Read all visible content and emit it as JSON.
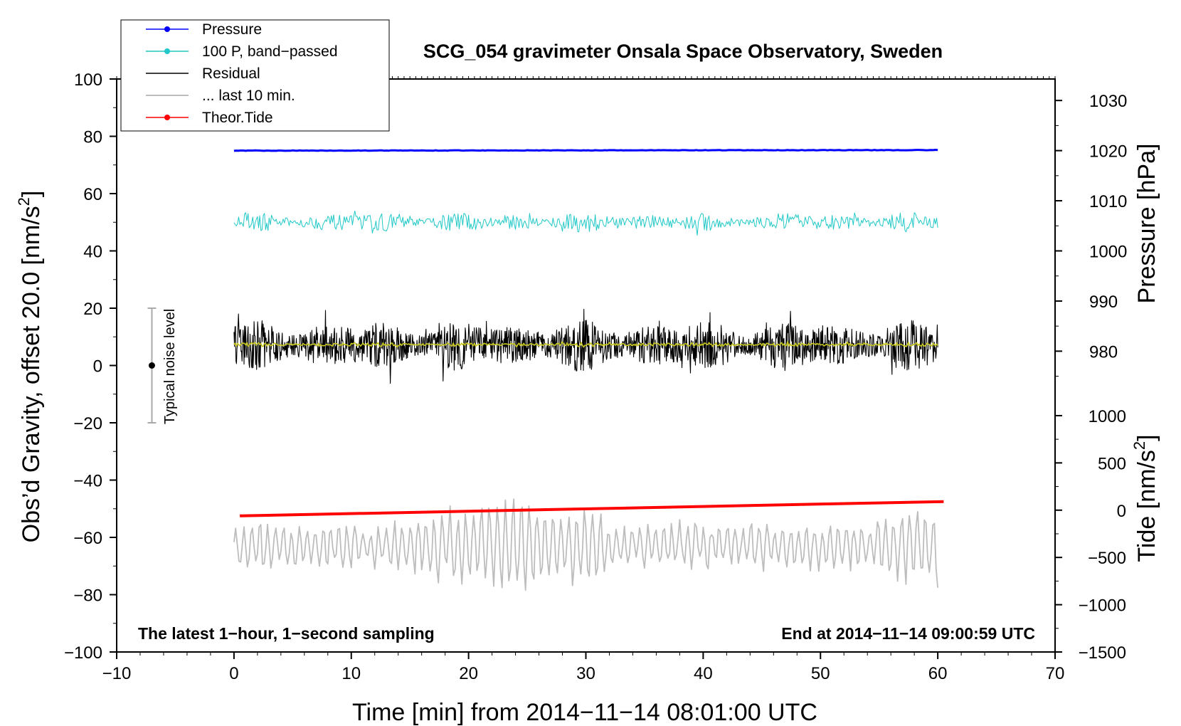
{
  "chart_data": {
    "type": "line",
    "title": "SCG_054 gravimeter Onsala Space Observatory, Sweden",
    "xlabel": "Time [min] from 2014−11−14 08:01:00 UTC",
    "ylabel_main": "Obs’d Gravity, offset 20.0 [nm/s",
    "ylabel_main_sup": "2",
    "ylabel_main_close": "]",
    "ylabel_pressure": "Pressure [hPa]",
    "ylabel_tide": "Tide [nm/s",
    "ylabel_tide_sup": "2",
    "ylabel_tide_close": "]",
    "xlim": [
      -10,
      70
    ],
    "ylim": [
      -100,
      100
    ],
    "x_ticks": [
      -10,
      0,
      10,
      20,
      30,
      40,
      50,
      60,
      70
    ],
    "x_tick_labels": [
      "−10",
      "0",
      "10",
      "20",
      "30",
      "40",
      "50",
      "60",
      "70"
    ],
    "y_ticks": [
      -100,
      -80,
      -60,
      -40,
      -20,
      0,
      20,
      40,
      60,
      80,
      100
    ],
    "y_tick_labels": [
      "−100",
      "−80",
      "−60",
      "−40",
      "−20",
      "0",
      "20",
      "40",
      "60",
      "80",
      "100"
    ],
    "pressure_axis": {
      "ticks": [
        980,
        990,
        1000,
        1010,
        1020,
        1030
      ],
      "tick_labels": [
        "980",
        "990",
        "1000",
        "1010",
        "1020",
        "1030"
      ],
      "map": {
        "value_a": 1020,
        "y_a": 75,
        "value_b": 980,
        "y_b": 5
      }
    },
    "tide_axis": {
      "ticks": [
        -1500,
        -1000,
        -500,
        0,
        500,
        1000
      ],
      "tick_labels": [
        "−1500",
        "−1000",
        "−500",
        "0",
        "500",
        "1000"
      ],
      "map": {
        "value_a": 1000,
        "y_a": -17.5,
        "value_b": -1500,
        "y_b": -100
      }
    },
    "series": [
      {
        "name": "Pressure",
        "color": "#0000ff",
        "kind": "flat",
        "x_range": [
          0,
          60
        ],
        "y_start": 75.0,
        "y_end": 75.2,
        "noise": 0.15
      },
      {
        "name": "100 P, band−passed",
        "color": "#20c8c8",
        "kind": "noise",
        "x_range": [
          0,
          60
        ],
        "center": 50,
        "amplitude": 3.2,
        "points": 600
      },
      {
        "name": "Residual",
        "color": "#000000",
        "kind": "noise",
        "x_range": [
          0,
          60
        ],
        "center": 7,
        "amplitude": 8.5,
        "points": 1400
      },
      {
        "name": "... last 10 min.",
        "color": "#bdbdbd",
        "kind": "oscillation",
        "x_range": [
          0,
          60
        ],
        "center": -63,
        "amplitude": 9,
        "points": 420
      },
      {
        "name": "Theor.Tide",
        "color": "#ff0000",
        "kind": "linear",
        "x_range": [
          0.5,
          60.5
        ],
        "y_start": -52.5,
        "y_end": -47.5
      },
      {
        "name": "Residual smoothed",
        "color": "#c8c820",
        "kind": "noise",
        "x_range": [
          0,
          60
        ],
        "center": 7.3,
        "amplitude": 0.7,
        "points": 600
      }
    ],
    "noise_bar": {
      "x": -7,
      "y_center": 0,
      "half_range": 20,
      "label": "Typical noise level"
    },
    "legend": {
      "placement": "top-left",
      "entries": [
        {
          "label": "Pressure",
          "color": "#0000ff",
          "marker": true
        },
        {
          "label": "100 P, band−passed",
          "color": "#20c8c8",
          "marker": true
        },
        {
          "label": "Residual",
          "color": "#000000",
          "marker": false
        },
        {
          "label": "... last 10 min.",
          "color": "#bdbdbd",
          "marker": false
        },
        {
          "label": "Theor.Tide",
          "color": "#ff0000",
          "marker": true
        }
      ]
    },
    "annotations": {
      "bottom_left": "The latest 1−hour, 1−second sampling",
      "bottom_right": "End at 2014−11−14 09:00:59 UTC"
    }
  }
}
